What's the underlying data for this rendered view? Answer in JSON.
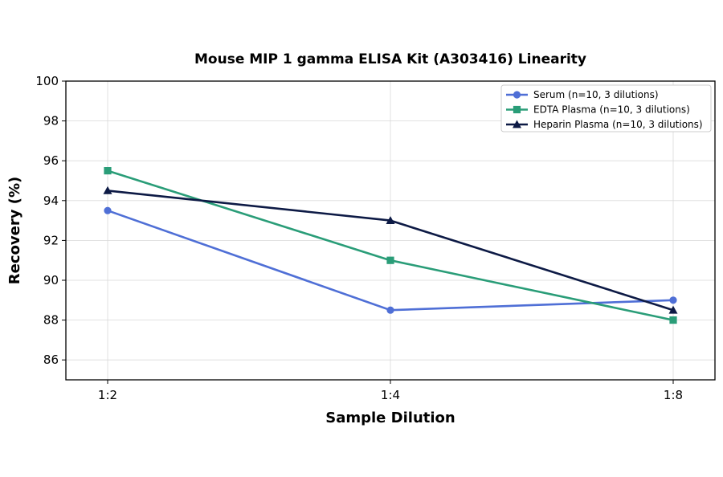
{
  "chart_data": {
    "type": "line",
    "title": "Mouse MIP 1 gamma ELISA Kit (A303416) Linearity",
    "xlabel": "Sample Dilution",
    "ylabel": "Recovery (%)",
    "categories": [
      "1:2",
      "1:4",
      "1:8"
    ],
    "ylim": [
      85,
      100
    ],
    "yticks": [
      86,
      88,
      90,
      92,
      94,
      96,
      98,
      100
    ],
    "grid": true,
    "legend_position": "top-right",
    "series": [
      {
        "name": "Serum (n=10, 3 dilutions)",
        "values": [
          93.5,
          88.5,
          89.0
        ],
        "color": "#4f6fd6",
        "marker": "circle"
      },
      {
        "name": "EDTA Plasma (n=10, 3 dilutions)",
        "values": [
          95.5,
          91.0,
          88.0
        ],
        "color": "#2a9d78",
        "marker": "square"
      },
      {
        "name": "Heparin Plasma (n=10, 3 dilutions)",
        "values": [
          94.5,
          93.0,
          88.5
        ],
        "color": "#0d1a45",
        "marker": "triangle"
      }
    ]
  }
}
